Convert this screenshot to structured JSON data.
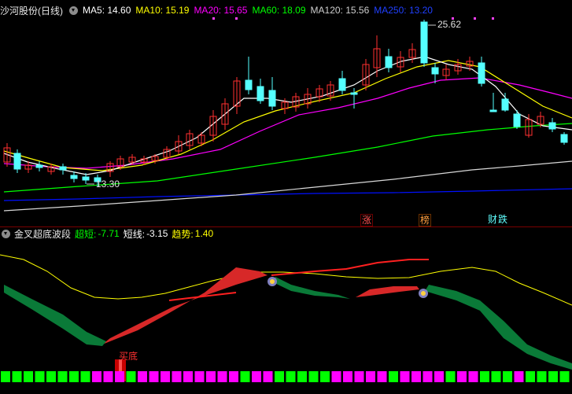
{
  "price_panel": {
    "stock_name": "沙河股份",
    "period": "(日线)",
    "ma": [
      {
        "label": "MA5: 14.60",
        "color": "#ffffff"
      },
      {
        "label": "MA10: 15.19",
        "color": "#ffff00"
      },
      {
        "label": "MA20: 15.65",
        "color": "#ff00ff"
      },
      {
        "label": "MA60: 18.09",
        "color": "#00ff00"
      },
      {
        "label": "MA120: 15.56",
        "color": "#cfcfcf"
      },
      {
        "label": "MA250: 13.20",
        "color": "#0000ff"
      }
    ],
    "high_label": "25.62",
    "low_label": "13.30",
    "event_badges": [
      {
        "text": "涨",
        "color": "#ff5050"
      },
      {
        "text": "榜",
        "color": "#ffa040"
      },
      {
        "text": "财",
        "color": "#60ffff"
      },
      {
        "text": "跌",
        "color": "#60ffff"
      }
    ]
  },
  "indicator_panel": {
    "name": "金叉超底波段",
    "items": [
      {
        "label": "超短:",
        "value": "-7.71",
        "color": "#00ff00"
      },
      {
        "label": "短线:",
        "value": "-3.15",
        "color": "#ffffff"
      },
      {
        "label": "趋势:",
        "value": "1.40",
        "color": "#ffff00"
      }
    ],
    "buy_signal": "买底"
  },
  "colors": {
    "up": "#ff3030",
    "down": "#54ffff",
    "background": "#000000",
    "band_up": "#d72828",
    "band_down": "#0a7a38"
  }
}
